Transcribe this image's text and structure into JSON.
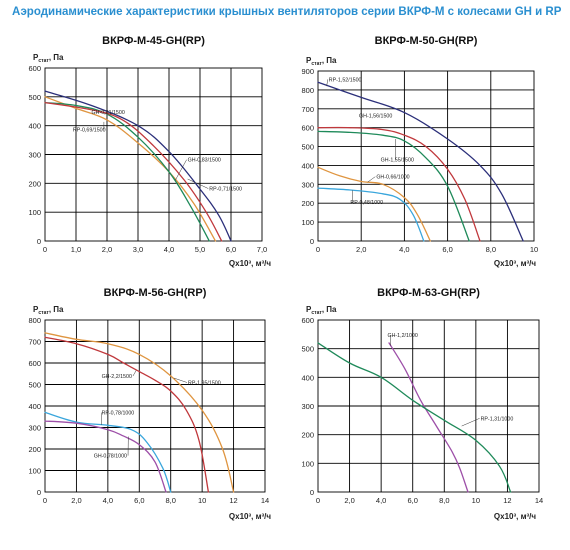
{
  "page_title": "Аэродинамические характеристики крышных вентиляторов серии ВКРФ-М с колесами GH и RP",
  "colors": {
    "title": "#2a8fd0",
    "navy": "#2b2f7a",
    "green": "#1f8a5a",
    "red": "#c0383c",
    "orange": "#df9540",
    "blue": "#3aa6dc",
    "purple": "#9d4fa8"
  },
  "chart_data": [
    {
      "type": "line",
      "title": "ВКРФ-М-45-GH(RP)",
      "ylabel": "Pстат, Па",
      "xlabel": "Qx10³, м³/ч",
      "xlim": [
        0,
        7
      ],
      "ylim": [
        0,
        600
      ],
      "xticks": [
        "0",
        "1,0",
        "2,0",
        "3,0",
        "4,0",
        "5,0",
        "6,0",
        "7,0"
      ],
      "yticks": [
        "0",
        "100",
        "200",
        "300",
        "400",
        "500",
        "600"
      ],
      "series": [
        {
          "name": "GH-0,81/1500",
          "color": "#2b2f7a",
          "x": [
            0,
            1.5,
            3.0,
            4.0,
            5.0,
            5.6,
            6.0
          ],
          "y": [
            520,
            470,
            400,
            310,
            180,
            90,
            0
          ],
          "label_at": [
            1.9,
            453
          ],
          "label_pos": [
            1.5,
            440
          ]
        },
        {
          "name": "RP-0,69/1500",
          "color": "#df9540",
          "x": [
            0,
            1.0,
            2.0,
            3.0,
            4.0,
            4.8,
            5.5
          ],
          "y": [
            500,
            460,
            420,
            340,
            240,
            130,
            0
          ],
          "label_at": [
            1.9,
            413
          ],
          "label_pos": [
            0.9,
            380
          ]
        },
        {
          "name": "GH-0,83/1500",
          "color": "#1f8a5a",
          "x": [
            0,
            1.0,
            2.0,
            3.0,
            4.0,
            4.7,
            5.3
          ],
          "y": [
            480,
            470,
            440,
            360,
            240,
            120,
            0
          ],
          "label_at": [
            4.2,
            210
          ],
          "label_pos": [
            4.6,
            275
          ]
        },
        {
          "name": "RP-0,71/1500",
          "color": "#c0383c",
          "x": [
            0,
            1.5,
            2.5,
            3.5,
            4.5,
            5.2,
            5.7
          ],
          "y": [
            480,
            455,
            420,
            330,
            210,
            100,
            0
          ],
          "label_at": [
            4.6,
            215
          ],
          "label_pos": [
            5.3,
            175
          ]
        }
      ]
    },
    {
      "type": "line",
      "title": "ВКРФ-М-50-GH(RP)",
      "ylabel": "Pстат, Па",
      "xlabel": "Qx10³, м³/ч",
      "xlim": [
        0,
        10
      ],
      "ylim": [
        0,
        900
      ],
      "xticks": [
        "0",
        "2,0",
        "4,0",
        "6,0",
        "8,0",
        "10"
      ],
      "yticks": [
        "0",
        "100",
        "200",
        "300",
        "400",
        "500",
        "600",
        "700",
        "800",
        "900"
      ],
      "series": [
        {
          "name": "RP-1,52/1500",
          "color": "#2b2f7a",
          "x": [
            0,
            2.0,
            4.0,
            6.0,
            7.5,
            8.5,
            9.5
          ],
          "y": [
            840,
            760,
            680,
            540,
            400,
            250,
            0
          ],
          "label_at": [
            0.4,
            820
          ],
          "label_pos": [
            0.5,
            845
          ]
        },
        {
          "name": "GH-1,56/1500",
          "color": "#c0383c",
          "x": [
            0,
            1.5,
            3.0,
            4.0,
            5.0,
            6.0,
            6.8,
            7.5
          ],
          "y": [
            600,
            600,
            590,
            560,
            500,
            380,
            220,
            0
          ],
          "label_at": [
            2.0,
            593
          ],
          "label_pos": [
            1.9,
            655
          ]
        },
        {
          "name": "GH-1,55/1500",
          "color": "#1f8a5a",
          "x": [
            0,
            1.5,
            3.0,
            4.0,
            5.0,
            6.0,
            7.0
          ],
          "y": [
            580,
            575,
            560,
            530,
            440,
            290,
            0
          ],
          "label_at": [
            3.6,
            540
          ],
          "label_pos": [
            2.9,
            420
          ]
        },
        {
          "name": "GH-0,66/1000",
          "color": "#df9540",
          "x": [
            0,
            1.0,
            2.0,
            3.0,
            4.0,
            4.6,
            5.2
          ],
          "y": [
            390,
            345,
            315,
            300,
            230,
            140,
            0
          ],
          "label_at": [
            2.3,
            312
          ],
          "label_pos": [
            2.7,
            330
          ]
        },
        {
          "name": "RP-0,48/1000",
          "color": "#3aa6dc",
          "x": [
            0,
            1.5,
            3.0,
            3.8,
            4.4,
            4.9
          ],
          "y": [
            280,
            270,
            250,
            220,
            140,
            0
          ],
          "label_at": [
            1.6,
            268
          ],
          "label_pos": [
            1.5,
            195
          ]
        }
      ]
    },
    {
      "type": "line",
      "title": "ВКРФ-М-56-GH(RP)",
      "ylabel": "Pстат, Па",
      "xlabel": "Qx10³, м³/ч",
      "xlim": [
        0,
        14
      ],
      "ylim": [
        0,
        800
      ],
      "xticks": [
        "0",
        "2,0",
        "4,0",
        "6,0",
        "8,0",
        "10",
        "12",
        "14"
      ],
      "yticks": [
        "0",
        "100",
        "200",
        "300",
        "400",
        "500",
        "600",
        "700",
        "800"
      ],
      "series": [
        {
          "name": "RP-1,95/1500",
          "color": "#df9540",
          "x": [
            0,
            2.0,
            4.0,
            6.0,
            8.0,
            10.0,
            11.3,
            12.0
          ],
          "y": [
            740,
            710,
            690,
            640,
            540,
            380,
            200,
            0
          ],
          "label_at": [
            8.2,
            530
          ],
          "label_pos": [
            9.1,
            500
          ]
        },
        {
          "name": "GH-2,2/1500",
          "color": "#c0383c",
          "x": [
            0,
            2.0,
            4.0,
            5.0,
            6.0,
            7.0,
            8.0,
            9.0,
            9.8,
            10.4
          ],
          "y": [
            720,
            690,
            640,
            600,
            560,
            520,
            470,
            380,
            240,
            0
          ],
          "label_at": [
            5.8,
            565
          ],
          "label_pos": [
            3.6,
            530
          ]
        },
        {
          "name": "RP-0,78/1000",
          "color": "#3aa6dc",
          "x": [
            0,
            2.0,
            4.0,
            5.5,
            6.5,
            7.5,
            8.0
          ],
          "y": [
            370,
            325,
            310,
            290,
            230,
            110,
            0
          ],
          "label_at": [
            3.6,
            312
          ],
          "label_pos": [
            3.6,
            360
          ]
        },
        {
          "name": "GH-0,78/1000",
          "color": "#9d4fa8",
          "x": [
            0,
            2.0,
            4.0,
            5.0,
            6.0,
            7.0,
            7.7
          ],
          "y": [
            330,
            320,
            290,
            260,
            220,
            140,
            0
          ],
          "label_at": [
            5.3,
            258
          ],
          "label_pos": [
            3.1,
            160
          ]
        }
      ]
    },
    {
      "type": "line",
      "title": "ВКРФ-М-63-GH(RP)",
      "ylabel": "Pстат, Па",
      "xlabel": "Qx10³, м³/ч",
      "xlim": [
        0,
        14
      ],
      "ylim": [
        0,
        600
      ],
      "xticks": [
        "0",
        "2,0",
        "4,0",
        "6,0",
        "8,0",
        "10",
        "12",
        "14"
      ],
      "yticks": [
        "0",
        "100",
        "200",
        "300",
        "400",
        "500",
        "600"
      ],
      "series": [
        {
          "name": "GH-1,2/1000",
          "color": "#9d4fa8",
          "x": [
            4.5,
            5.5,
            6.5,
            7.5,
            8.5,
            9.0,
            9.5
          ],
          "y": [
            520,
            430,
            320,
            230,
            140,
            80,
            0
          ],
          "label_at": [
            4.6,
            510
          ],
          "label_pos": [
            4.4,
            540
          ]
        },
        {
          "name": "RP-1,31/1000",
          "color": "#1f8a5a",
          "x": [
            0,
            2.0,
            4.0,
            6.0,
            8.0,
            10.0,
            11.5,
            12.2
          ],
          "y": [
            520,
            450,
            400,
            320,
            250,
            180,
            90,
            0
          ],
          "label_at": [
            9.1,
            230
          ],
          "label_pos": [
            10.3,
            250
          ]
        }
      ]
    }
  ]
}
